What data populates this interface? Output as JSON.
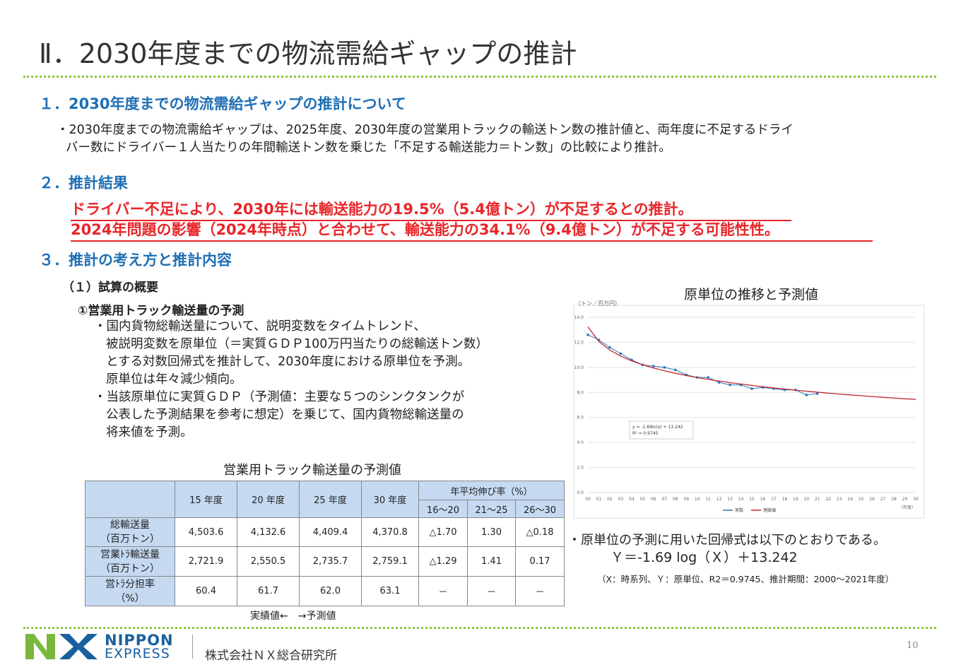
{
  "header": {
    "title": "Ⅱ．2030年度までの物流需給ギャップの推計"
  },
  "sections": [
    {
      "heading": "１．2030年度までの物流需給ギャップの推計について",
      "bullet": [
        "・2030年度までの物流需給ギャップは、2025年度、2030年度の営業用トラックの輸送トン数の推計値と、両年度に不足するドライ",
        "バー数にドライバー１人当たりの年間輸送トン数を乗じた「不足する輸送能力＝トン数」の比較により推計。"
      ]
    },
    {
      "heading": "２．推計結果",
      "highlight": [
        "ドライバー不足により、2030年には輸送能力の19.5%（5.4億トン）が不足するとの推計。",
        "2024年問題の影響（2024年時点）と合わせて、輸送能力の34.1%（9.4億トン）が不足する可能性性。"
      ]
    },
    {
      "heading": "３．推計の考え方と推計内容",
      "subheading": "（１）試算の概要",
      "item": "①営業用トラック輸送量の予測",
      "bullets": [
        [
          "・国内貨物総輸送量について、説明変数をタイムトレンド、",
          "被説明変数を原単位（＝実質ＧＤＰ100万円当たりの総輸送トン数）",
          "とする対数回帰式を推計して、2030年度における原単位を予測。",
          "原単位は年々減少傾向。"
        ],
        [
          "・当該原単位に実質ＧＤＰ（予測値：主要な５つのシンクタンクが",
          "公表した予測結果を参考に想定）を乗じて、国内貨物総輸送量の",
          "将来値を予測。"
        ]
      ]
    }
  ],
  "table": {
    "title": "営業用トラック輸送量の予測値",
    "header": [
      "15 年度",
      "20 年度",
      "25 年度",
      "30 年度"
    ],
    "growth_header": "年平均伸び率（%）",
    "growth_periods": [
      "16～20",
      "21～25",
      "26～30"
    ],
    "rows": [
      {
        "label": [
          "総輸送量",
          "（百万トン）"
        ],
        "cells": [
          "4,503.6",
          "4,132.6",
          "4,409.4",
          "4,370.8",
          "△1.70",
          "1.30",
          "△0.18"
        ]
      },
      {
        "label": [
          "営業ﾄﾗ輸送量",
          "（百万トン）"
        ],
        "cells": [
          "2,721.9",
          "2,550.5",
          "2,735.7",
          "2,759.1",
          "△1.29",
          "1.41",
          "0.17"
        ]
      },
      {
        "label": [
          "営ﾄﾗ分担率",
          "（%）"
        ],
        "cells": [
          "60.4",
          "61.7",
          "62.0",
          "63.1",
          "－",
          "－",
          "－"
        ]
      }
    ],
    "note": "実績値←　→予測値"
  },
  "chart_data": {
    "type": "line",
    "title": "原単位の推移と予測値",
    "ylabel": "（トン／百万円）",
    "xlabel": "（年度）",
    "categories": [
      "00",
      "01",
      "02",
      "03",
      "04",
      "05",
      "06",
      "07",
      "08",
      "09",
      "10",
      "11",
      "12",
      "13",
      "14",
      "15",
      "16",
      "17",
      "18",
      "19",
      "20",
      "21",
      "22",
      "23",
      "24",
      "25",
      "26",
      "27",
      "28",
      "29",
      "30"
    ],
    "series": [
      {
        "name": "実数",
        "color": "#2e75b6",
        "marker": true,
        "values": [
          12.6,
          12.2,
          11.6,
          11.1,
          10.6,
          10.2,
          10.1,
          10.0,
          9.8,
          9.4,
          9.2,
          9.2,
          8.8,
          8.6,
          8.6,
          8.3,
          8.4,
          8.3,
          8.2,
          8.2,
          7.8,
          7.9,
          null,
          null,
          null,
          null,
          null,
          null,
          null,
          null,
          null
        ]
      },
      {
        "name": "理論値",
        "color": "#c0282d",
        "marker": false,
        "values": [
          13.24,
          12.07,
          11.39,
          10.9,
          10.52,
          10.21,
          9.95,
          9.73,
          9.53,
          9.35,
          9.19,
          9.04,
          8.91,
          8.78,
          8.67,
          8.56,
          8.45,
          8.36,
          8.27,
          8.18,
          8.1,
          8.02,
          7.94,
          7.87,
          7.8,
          7.74,
          7.67,
          7.61,
          7.55,
          7.49,
          7.44
        ]
      }
    ],
    "ylim": [
      0,
      14
    ],
    "yticks": [
      {
        "value": 0,
        "label": "0.0"
      },
      {
        "value": 2,
        "label": "2.0"
      },
      {
        "value": 4,
        "label": "4.0"
      },
      {
        "value": 6,
        "label": "6.0"
      },
      {
        "value": 8,
        "label": "8.0"
      },
      {
        "value": 10,
        "label": "10.0"
      },
      {
        "value": 12,
        "label": "12.0"
      },
      {
        "value": 14,
        "label": "14.0"
      }
    ],
    "grid": true,
    "legend": "bottom",
    "annotation": [
      "y = -1.69ln(x) + 13.242",
      "R² = 0.9745"
    ]
  },
  "regression": {
    "intro": "・原単位の予測に用いた回帰式は以下のとおりである。",
    "formula": "Ｙ＝-1.69 log（Ｘ）＋13.242",
    "note": "（X：時系列、Ｙ：原単位、R2＝0.9745、推計期間：2000～2021年度）"
  },
  "footer": {
    "logo_top": "NIPPON",
    "logo_bottom": "EXPRESS",
    "company": "株式会社ＮＸ総合研究所",
    "page": "10"
  }
}
